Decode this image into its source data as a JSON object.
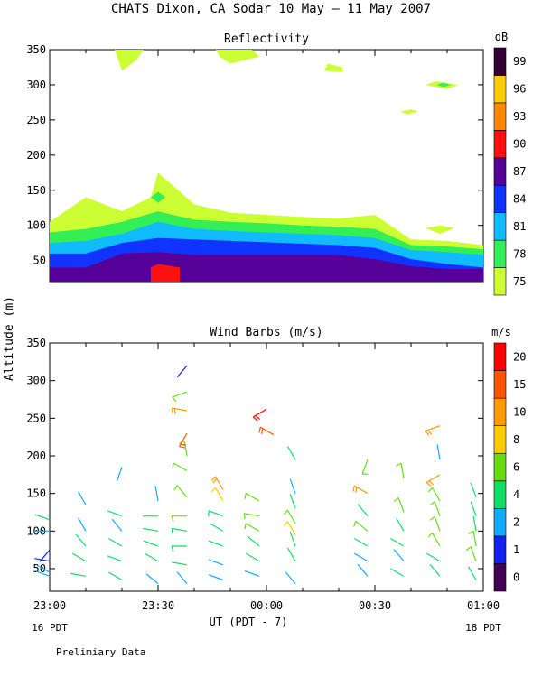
{
  "title": "CHATS Dixon, CA  Sodar  10 May — 11 May 2007",
  "footer_note": "Prelimiary Data",
  "shared_ylabel": "Altitude (m)",
  "chart_data": [
    {
      "type": "heatmap",
      "title": "Reflectivity",
      "colorbar_unit": "dB",
      "ylim": [
        20,
        350
      ],
      "xlim": [
        0,
        120
      ],
      "y_ticks": [
        50,
        100,
        150,
        200,
        250,
        300,
        350
      ],
      "colorbar": {
        "labels": [
          "75",
          "78",
          "81",
          "84",
          "87",
          "90",
          "93",
          "96",
          "99"
        ],
        "colors": [
          "#ccff33",
          "#33ee55",
          "#11bbff",
          "#1133ff",
          "#550099",
          "#ff1111",
          "#ff8800",
          "#ffcc00",
          "#330033"
        ]
      },
      "layers": [
        {
          "level": "75",
          "top": [
            [
              0,
              105
            ],
            [
              10,
              140
            ],
            [
              20,
              120
            ],
            [
              28,
              140
            ],
            [
              30,
              175
            ],
            [
              40,
              130
            ],
            [
              50,
              118
            ],
            [
              60,
              115
            ],
            [
              70,
              112
            ],
            [
              80,
              110
            ],
            [
              90,
              115
            ],
            [
              100,
              80
            ],
            [
              110,
              78
            ],
            [
              120,
              72
            ]
          ]
        },
        {
          "level": "78",
          "top": [
            [
              0,
              90
            ],
            [
              10,
              95
            ],
            [
              20,
              105
            ],
            [
              30,
              120
            ],
            [
              40,
              108
            ],
            [
              50,
              105
            ],
            [
              60,
              103
            ],
            [
              70,
              100
            ],
            [
              80,
              98
            ],
            [
              90,
              95
            ],
            [
              100,
              72
            ],
            [
              110,
              70
            ],
            [
              120,
              66
            ]
          ]
        },
        {
          "level": "81",
          "top": [
            [
              0,
              75
            ],
            [
              10,
              78
            ],
            [
              20,
              88
            ],
            [
              30,
              105
            ],
            [
              40,
              95
            ],
            [
              50,
              92
            ],
            [
              60,
              90
            ],
            [
              70,
              88
            ],
            [
              80,
              86
            ],
            [
              90,
              82
            ],
            [
              100,
              65
            ],
            [
              110,
              62
            ],
            [
              120,
              58
            ]
          ]
        },
        {
          "level": "84",
          "top": [
            [
              0,
              60
            ],
            [
              10,
              60
            ],
            [
              20,
              75
            ],
            [
              30,
              82
            ],
            [
              40,
              80
            ],
            [
              50,
              78
            ],
            [
              60,
              76
            ],
            [
              70,
              74
            ],
            [
              80,
              72
            ],
            [
              90,
              68
            ],
            [
              100,
              52
            ],
            [
              110,
              45
            ],
            [
              120,
              40
            ]
          ]
        },
        {
          "level": "87",
          "top": [
            [
              0,
              40
            ],
            [
              10,
              40
            ],
            [
              20,
              60
            ],
            [
              30,
              62
            ],
            [
              40,
              58
            ],
            [
              50,
              58
            ],
            [
              60,
              58
            ],
            [
              70,
              58
            ],
            [
              80,
              58
            ],
            [
              90,
              52
            ],
            [
              100,
              42
            ],
            [
              110,
              38
            ],
            [
              120,
              38
            ]
          ]
        },
        {
          "level": "90",
          "top": [
            [
              28,
              40
            ],
            [
              30,
              45
            ],
            [
              36,
              40
            ]
          ]
        }
      ],
      "patches": [
        {
          "level": "75",
          "points": [
            [
              18,
              350
            ],
            [
              26,
              350
            ],
            [
              24,
              335
            ],
            [
              20,
              320
            ]
          ]
        },
        {
          "level": "75",
          "points": [
            [
              46,
              350
            ],
            [
              56,
              350
            ],
            [
              58,
              340
            ],
            [
              50,
              330
            ],
            [
              47,
              340
            ]
          ]
        },
        {
          "level": "75",
          "points": [
            [
              77,
              330
            ],
            [
              81,
              325
            ],
            [
              81,
              318
            ],
            [
              76,
              320
            ]
          ]
        },
        {
          "level": "75",
          "points": [
            [
              100,
              265
            ],
            [
              102,
              262
            ],
            [
              99,
              258
            ],
            [
              97,
              262
            ]
          ]
        },
        {
          "level": "75",
          "points": [
            [
              107,
              305
            ],
            [
              113,
              300
            ],
            [
              110,
              294
            ],
            [
              104,
              300
            ]
          ]
        },
        {
          "level": "75",
          "points": [
            [
              108,
              100
            ],
            [
              112,
              96
            ],
            [
              108,
              88
            ],
            [
              104,
              96
            ]
          ]
        },
        {
          "level": "78",
          "points": [
            [
              30,
              148
            ],
            [
              32,
              140
            ],
            [
              30,
              132
            ],
            [
              28,
              140
            ]
          ]
        },
        {
          "level": "78",
          "points": [
            [
              109,
              303
            ],
            [
              111,
              300
            ],
            [
              109,
              297
            ],
            [
              107,
              300
            ]
          ]
        }
      ]
    },
    {
      "type": "scatter",
      "title": "Wind Barbs (m/s)",
      "colorbar_unit": "m/s",
      "ylim": [
        20,
        350
      ],
      "xlim": [
        0,
        120
      ],
      "y_ticks": [
        50,
        100,
        150,
        200,
        250,
        300,
        350
      ],
      "x_tick_labels": [
        "23:00",
        "23:30",
        "00:00",
        "00:30",
        "01:00"
      ],
      "x_tick_minutes": [
        0,
        30,
        60,
        90,
        120
      ],
      "xlabel": "UT  (PDT - 7)",
      "x_sublabels": {
        "left": "16 PDT",
        "right": "18 PDT"
      },
      "colorbar": {
        "labels": [
          "0",
          "1",
          "2",
          "4",
          "6",
          "8",
          "10",
          "15",
          "20"
        ],
        "colors": [
          "#440055",
          "#1122ee",
          "#11aaff",
          "#11dd66",
          "#66dd11",
          "#ffcc00",
          "#ff9900",
          "#ff5500",
          "#ff0000"
        ]
      },
      "barbs": [
        {
          "t": 0,
          "alt": 75,
          "dir": 220,
          "speed": 1
        },
        {
          "t": 0,
          "alt": 60,
          "dir": 280,
          "speed": 1
        },
        {
          "t": 0,
          "alt": 45,
          "dir": 300,
          "speed": 2
        },
        {
          "t": 0,
          "alt": 40,
          "dir": 290,
          "speed": 3
        },
        {
          "t": 0,
          "alt": 100,
          "dir": 270,
          "speed": 3
        },
        {
          "t": 0,
          "alt": 115,
          "dir": 290,
          "speed": 4
        },
        {
          "t": 10,
          "alt": 40,
          "dir": 280,
          "speed": 4
        },
        {
          "t": 10,
          "alt": 60,
          "dir": 300,
          "speed": 4
        },
        {
          "t": 10,
          "alt": 80,
          "dir": 320,
          "speed": 4
        },
        {
          "t": 10,
          "alt": 100,
          "dir": 330,
          "speed": 3
        },
        {
          "t": 10,
          "alt": 135,
          "dir": 330,
          "speed": 2
        },
        {
          "t": 20,
          "alt": 35,
          "dir": 300,
          "speed": 4
        },
        {
          "t": 20,
          "alt": 60,
          "dir": 290,
          "speed": 4
        },
        {
          "t": 20,
          "alt": 80,
          "dir": 300,
          "speed": 4
        },
        {
          "t": 20,
          "alt": 100,
          "dir": 320,
          "speed": 3
        },
        {
          "t": 20,
          "alt": 120,
          "dir": 290,
          "speed": 4
        },
        {
          "t": 20,
          "alt": 185,
          "dir": 200,
          "speed": 2
        },
        {
          "t": 30,
          "alt": 30,
          "dir": 310,
          "speed": 3
        },
        {
          "t": 30,
          "alt": 60,
          "dir": 300,
          "speed": 4
        },
        {
          "t": 30,
          "alt": 80,
          "dir": 290,
          "speed": 4
        },
        {
          "t": 30,
          "alt": 100,
          "dir": 280,
          "speed": 4
        },
        {
          "t": 30,
          "alt": 120,
          "dir": 270,
          "speed": 4
        },
        {
          "t": 30,
          "alt": 140,
          "dir": 350,
          "speed": 2
        },
        {
          "t": 38,
          "alt": 30,
          "dir": 320,
          "speed": 2
        },
        {
          "t": 38,
          "alt": 55,
          "dir": 280,
          "speed": 4
        },
        {
          "t": 38,
          "alt": 80,
          "dir": 270,
          "speed": 5
        },
        {
          "t": 38,
          "alt": 100,
          "dir": 280,
          "speed": 5
        },
        {
          "t": 38,
          "alt": 120,
          "dir": 270,
          "speed": 6
        },
        {
          "t": 38,
          "alt": 145,
          "dir": 320,
          "speed": 6
        },
        {
          "t": 38,
          "alt": 180,
          "dir": 300,
          "speed": 6
        },
        {
          "t": 38,
          "alt": 200,
          "dir": 350,
          "speed": 6
        },
        {
          "t": 38,
          "alt": 230,
          "dir": 210,
          "speed": 15
        },
        {
          "t": 38,
          "alt": 260,
          "dir": 280,
          "speed": 10
        },
        {
          "t": 38,
          "alt": 285,
          "dir": 250,
          "speed": 6
        },
        {
          "t": 38,
          "alt": 320,
          "dir": 220,
          "speed": 1
        },
        {
          "t": 48,
          "alt": 35,
          "dir": 290,
          "speed": 3
        },
        {
          "t": 48,
          "alt": 55,
          "dir": 290,
          "speed": 3
        },
        {
          "t": 48,
          "alt": 80,
          "dir": 290,
          "speed": 4
        },
        {
          "t": 48,
          "alt": 100,
          "dir": 300,
          "speed": 4
        },
        {
          "t": 48,
          "alt": 120,
          "dir": 290,
          "speed": 5
        },
        {
          "t": 48,
          "alt": 140,
          "dir": 330,
          "speed": 8
        },
        {
          "t": 48,
          "alt": 155,
          "dir": 330,
          "speed": 10
        },
        {
          "t": 58,
          "alt": 40,
          "dir": 290,
          "speed": 3
        },
        {
          "t": 58,
          "alt": 60,
          "dir": 300,
          "speed": 4
        },
        {
          "t": 58,
          "alt": 80,
          "dir": 310,
          "speed": 4
        },
        {
          "t": 58,
          "alt": 100,
          "dir": 300,
          "speed": 6
        },
        {
          "t": 58,
          "alt": 120,
          "dir": 280,
          "speed": 6
        },
        {
          "t": 58,
          "alt": 140,
          "dir": 300,
          "speed": 6
        },
        {
          "t": 60,
          "alt": 262,
          "dir": 240,
          "speed": 20
        },
        {
          "t": 62,
          "alt": 228,
          "dir": 300,
          "speed": 15
        },
        {
          "t": 68,
          "alt": 30,
          "dir": 320,
          "speed": 3
        },
        {
          "t": 68,
          "alt": 60,
          "dir": 330,
          "speed": 4
        },
        {
          "t": 68,
          "alt": 80,
          "dir": 340,
          "speed": 4
        },
        {
          "t": 68,
          "alt": 95,
          "dir": 330,
          "speed": 8
        },
        {
          "t": 68,
          "alt": 110,
          "dir": 330,
          "speed": 6
        },
        {
          "t": 68,
          "alt": 130,
          "dir": 340,
          "speed": 4
        },
        {
          "t": 68,
          "alt": 150,
          "dir": 340,
          "speed": 2
        },
        {
          "t": 68,
          "alt": 195,
          "dir": 330,
          "speed": 4
        },
        {
          "t": 88,
          "alt": 40,
          "dir": 320,
          "speed": 2
        },
        {
          "t": 88,
          "alt": 60,
          "dir": 300,
          "speed": 3
        },
        {
          "t": 88,
          "alt": 80,
          "dir": 300,
          "speed": 4
        },
        {
          "t": 88,
          "alt": 100,
          "dir": 310,
          "speed": 6
        },
        {
          "t": 88,
          "alt": 120,
          "dir": 320,
          "speed": 4
        },
        {
          "t": 88,
          "alt": 150,
          "dir": 300,
          "speed": 10
        },
        {
          "t": 88,
          "alt": 195,
          "dir": 200,
          "speed": 6
        },
        {
          "t": 98,
          "alt": 40,
          "dir": 300,
          "speed": 4
        },
        {
          "t": 98,
          "alt": 60,
          "dir": 320,
          "speed": 3
        },
        {
          "t": 98,
          "alt": 80,
          "dir": 300,
          "speed": 4
        },
        {
          "t": 98,
          "alt": 100,
          "dir": 330,
          "speed": 4
        },
        {
          "t": 98,
          "alt": 125,
          "dir": 340,
          "speed": 6
        },
        {
          "t": 98,
          "alt": 170,
          "dir": 350,
          "speed": 6
        },
        {
          "t": 108,
          "alt": 40,
          "dir": 320,
          "speed": 4
        },
        {
          "t": 108,
          "alt": 60,
          "dir": 300,
          "speed": 4
        },
        {
          "t": 108,
          "alt": 80,
          "dir": 330,
          "speed": 6
        },
        {
          "t": 108,
          "alt": 100,
          "dir": 340,
          "speed": 6
        },
        {
          "t": 108,
          "alt": 120,
          "dir": 340,
          "speed": 6
        },
        {
          "t": 108,
          "alt": 140,
          "dir": 330,
          "speed": 6
        },
        {
          "t": 108,
          "alt": 175,
          "dir": 240,
          "speed": 10
        },
        {
          "t": 108,
          "alt": 195,
          "dir": 350,
          "speed": 2
        },
        {
          "t": 108,
          "alt": 240,
          "dir": 250,
          "speed": 10
        },
        {
          "t": 118,
          "alt": 35,
          "dir": 330,
          "speed": 4
        },
        {
          "t": 118,
          "alt": 60,
          "dir": 340,
          "speed": 6
        },
        {
          "t": 118,
          "alt": 80,
          "dir": 350,
          "speed": 6
        },
        {
          "t": 118,
          "alt": 100,
          "dir": 350,
          "speed": 4
        },
        {
          "t": 118,
          "alt": 120,
          "dir": 340,
          "speed": 4
        },
        {
          "t": 118,
          "alt": 145,
          "dir": 340,
          "speed": 4
        }
      ]
    }
  ]
}
